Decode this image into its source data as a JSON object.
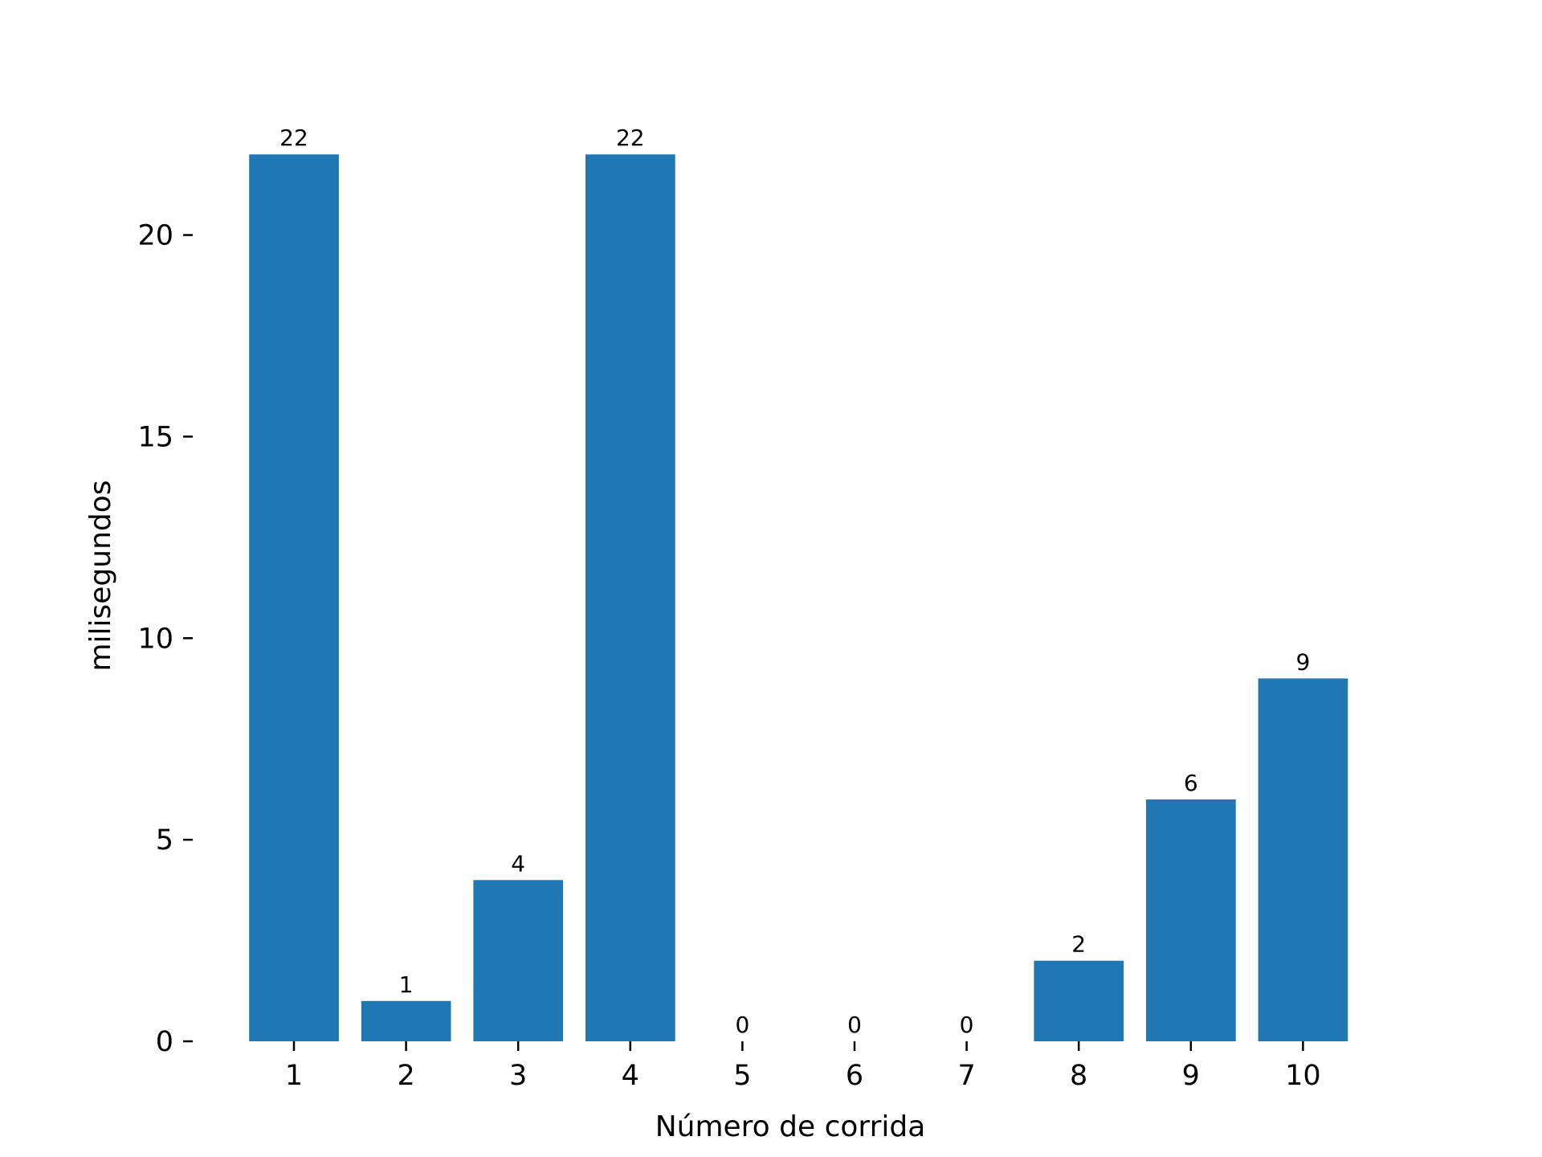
{
  "chart_data": {
    "type": "bar",
    "categories": [
      "1",
      "2",
      "3",
      "4",
      "5",
      "6",
      "7",
      "8",
      "9",
      "10"
    ],
    "values": [
      22,
      1,
      4,
      22,
      0,
      0,
      0,
      2,
      6,
      9
    ],
    "data_labels": [
      "22",
      "1",
      "4",
      "22",
      "0",
      "0",
      "0",
      "2",
      "6",
      "9"
    ],
    "xlabel": "Número de corrida",
    "ylabel": "milisegundos",
    "yticks": [
      0,
      5,
      10,
      15,
      20
    ],
    "ylim": [
      0,
      23.1
    ],
    "bar_color": "#1f77b4",
    "grid": false,
    "legend": "none",
    "spines": false
  }
}
